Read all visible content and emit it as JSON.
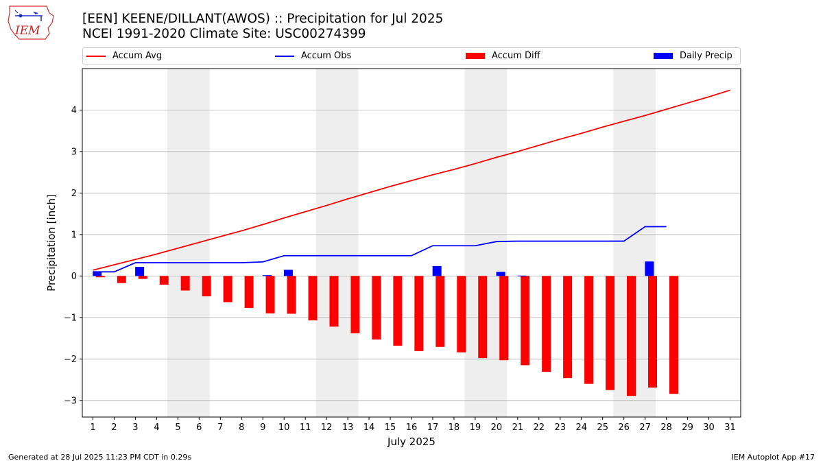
{
  "header": {
    "title_line1": "[EEN] KEENE/DILLANT(AWOS) :: Precipitation for Jul 2025",
    "title_line2": "NCEI 1991-2020 Climate Site: USC00274399",
    "logo_text": "IEM"
  },
  "footer": {
    "generated": "Generated at 28 Jul 2025 11:23 PM CDT in 0.29s",
    "app": "IEM Autoplot App #17"
  },
  "colors": {
    "avg": "#ff0000",
    "obs": "#0000ff",
    "diff": "#ff0000",
    "daily": "#0000ff",
    "weekend_band": "#eeeeee",
    "grid": "#b0b0b0"
  },
  "chart_data": {
    "type": "bar",
    "xlabel": "July 2025",
    "ylabel": "Precipitation [inch]",
    "xlim": [
      0.5,
      31.5
    ],
    "ylim": [
      -3.4,
      5.0
    ],
    "yticks": [
      -3,
      -2,
      -1,
      0,
      1,
      2,
      3,
      4
    ],
    "ytick_labels": [
      "−3",
      "−2",
      "−1",
      "0",
      "1",
      "2",
      "3",
      "4"
    ],
    "days": [
      1,
      2,
      3,
      4,
      5,
      6,
      7,
      8,
      9,
      10,
      11,
      12,
      13,
      14,
      15,
      16,
      17,
      18,
      19,
      20,
      21,
      22,
      23,
      24,
      25,
      26,
      27,
      28,
      29,
      30,
      31
    ],
    "weekend_bands": [
      [
        4.5,
        6.5
      ],
      [
        11.5,
        13.5
      ],
      [
        18.5,
        20.5
      ],
      [
        25.5,
        27.5
      ]
    ],
    "grid": true,
    "legend_position": "top",
    "series": [
      {
        "name": "Accum Avg",
        "kind": "line",
        "x": [
          1,
          2,
          3,
          4,
          5,
          6,
          7,
          8,
          9,
          10,
          11,
          12,
          13,
          14,
          15,
          16,
          17,
          18,
          19,
          20,
          21,
          22,
          23,
          24,
          25,
          26,
          27,
          28,
          29,
          30,
          31
        ],
        "values": [
          0.14,
          0.27,
          0.4,
          0.53,
          0.67,
          0.81,
          0.95,
          1.09,
          1.24,
          1.4,
          1.55,
          1.7,
          1.86,
          2.01,
          2.16,
          2.3,
          2.44,
          2.57,
          2.71,
          2.86,
          3.0,
          3.15,
          3.3,
          3.44,
          3.59,
          3.73,
          3.87,
          4.02,
          4.17,
          4.32,
          4.48
        ]
      },
      {
        "name": "Accum Obs",
        "kind": "line",
        "x": [
          1,
          2,
          3,
          4,
          5,
          6,
          7,
          8,
          9,
          10,
          11,
          12,
          13,
          14,
          15,
          16,
          17,
          18,
          19,
          20,
          21,
          22,
          23,
          24,
          25,
          26,
          27,
          28
        ],
        "values": [
          0.1,
          0.1,
          0.32,
          0.32,
          0.32,
          0.32,
          0.32,
          0.32,
          0.34,
          0.49,
          0.49,
          0.49,
          0.49,
          0.49,
          0.49,
          0.49,
          0.73,
          0.73,
          0.73,
          0.83,
          0.84,
          0.84,
          0.84,
          0.84,
          0.84,
          0.84,
          1.19,
          1.19
        ]
      },
      {
        "name": "Accum Diff",
        "kind": "bar",
        "x": [
          1,
          2,
          3,
          4,
          5,
          6,
          7,
          8,
          9,
          10,
          11,
          12,
          13,
          14,
          15,
          16,
          17,
          18,
          19,
          20,
          21,
          22,
          23,
          24,
          25,
          26,
          27,
          28
        ],
        "values": [
          -0.03,
          -0.17,
          -0.07,
          -0.21,
          -0.35,
          -0.49,
          -0.63,
          -0.77,
          -0.9,
          -0.91,
          -1.07,
          -1.22,
          -1.38,
          -1.53,
          -1.68,
          -1.81,
          -1.71,
          -1.84,
          -1.98,
          -2.03,
          -2.15,
          -2.31,
          -2.46,
          -2.6,
          -2.75,
          -2.89,
          -2.69,
          -2.84
        ]
      },
      {
        "name": "Daily Precip",
        "kind": "bar",
        "x": [
          1,
          2,
          3,
          4,
          5,
          6,
          7,
          8,
          9,
          10,
          11,
          12,
          13,
          14,
          15,
          16,
          17,
          18,
          19,
          20,
          21,
          22,
          23,
          24,
          25,
          26,
          27,
          28
        ],
        "values": [
          0.1,
          0,
          0.22,
          0,
          0,
          0,
          0,
          0,
          0.02,
          0.15,
          0,
          0,
          0,
          0,
          0,
          0,
          0.24,
          0,
          0,
          0.1,
          0.01,
          0,
          0,
          0,
          0,
          0,
          0.35,
          0
        ]
      }
    ]
  }
}
